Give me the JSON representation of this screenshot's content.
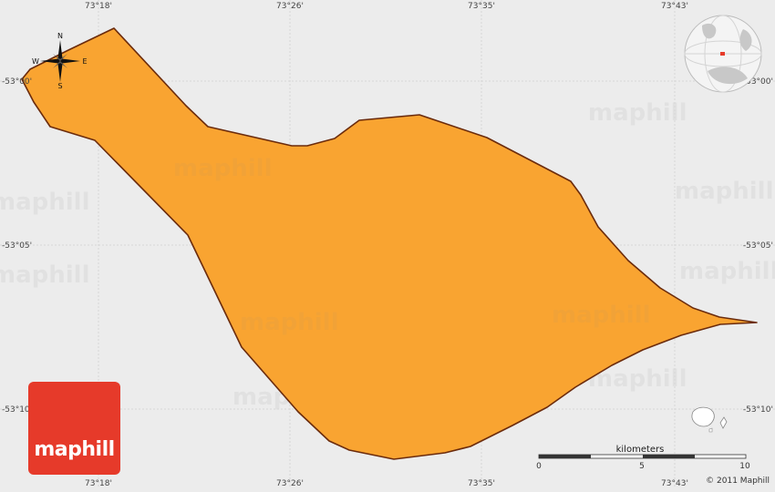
{
  "map": {
    "top_longitudes": [
      "73°18'",
      "73°26'",
      "73°35'",
      "73°43'"
    ],
    "bottom_longitudes": [
      "73°18'",
      "73°26'",
      "73°35'",
      "73°43'"
    ],
    "left_latitudes": [
      "-53°00'",
      "-53°05'",
      "-53°10'"
    ],
    "right_latitudes": [
      "-53°00'",
      "-53°05'",
      "-53°10'"
    ],
    "watermark": "maphill",
    "land_color": "#f9a431",
    "border_color": "#6b2b0c",
    "background_color": "#ececec"
  },
  "compass": {
    "north": "N",
    "south": "S",
    "east": "E",
    "west": "W"
  },
  "scale": {
    "title": "kilometers",
    "labels": [
      "0",
      "5",
      "10"
    ]
  },
  "logo": {
    "text": "maphill",
    "color": "#e63a2a"
  },
  "copyright": "© 2011 Maphill"
}
